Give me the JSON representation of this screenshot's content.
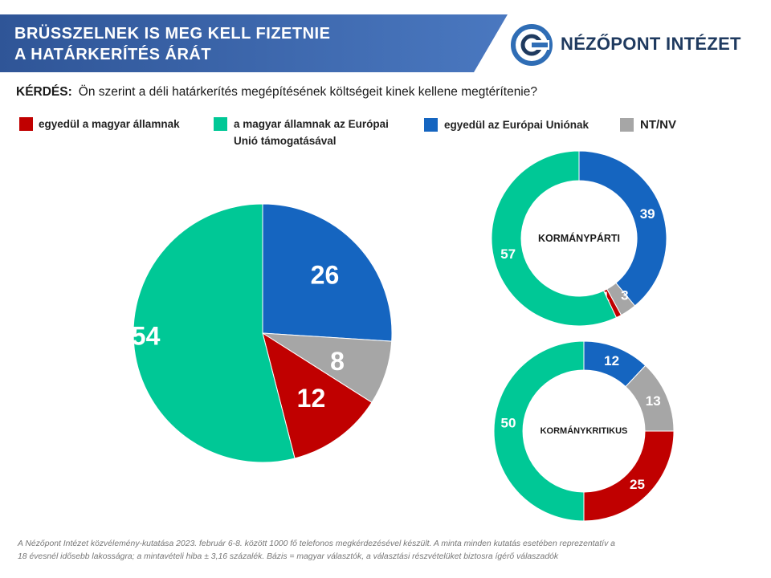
{
  "header": {
    "title_line1": "BRÜSSZELNEK IS MEG KELL FIZETNIE",
    "title_line2": "A HATÁRKERÍTÉS ÁRÁT",
    "logo_text": "NÉZŐPONT INTÉZET",
    "logo_icon": "nezopont-logo-icon",
    "banner_color": "#2f5597"
  },
  "question": {
    "label": "KÉRDÉS:",
    "text": "Ön szerint a déli határkerítés megépítésének költségeit kinek kellene megtérítenie?"
  },
  "legend": [
    {
      "label": "egyedül a magyar államnak",
      "color": "#c00000"
    },
    {
      "label": "a magyar államnak az Európai",
      "label2": "Unió támogatásával",
      "color": "#00c896"
    },
    {
      "label": "egyedül az Európai Uniónak",
      "color": "#1565c0"
    },
    {
      "label": "NT/NV",
      "color": "#a6a6a6"
    }
  ],
  "chart_data": [
    {
      "type": "pie",
      "title": "",
      "categories": [
        "egyedül az Európai Uniónak",
        "NT/NV",
        "egyedül a magyar államnak",
        "a magyar államnak az Európai Unió támogatásával"
      ],
      "values": [
        26,
        8,
        12,
        54
      ],
      "labels": [
        "26",
        "8",
        "12",
        "54"
      ],
      "colors": [
        "#1565c0",
        "#a6a6a6",
        "#c00000",
        "#00c896"
      ]
    },
    {
      "type": "pie",
      "subtype": "donut",
      "title": "KORMÁNYPÁRTI",
      "categories": [
        "egyedül az Európai Uniónak",
        "NT/NV",
        "egyedül a magyar államnak",
        "a magyar államnak az Európai Unió támogatásával"
      ],
      "values": [
        39,
        3,
        1,
        57
      ],
      "labels": [
        "39",
        "3",
        "1",
        "57"
      ],
      "colors": [
        "#1565c0",
        "#a6a6a6",
        "#c00000",
        "#00c896"
      ]
    },
    {
      "type": "pie",
      "subtype": "donut",
      "title": "KORMÁNYKRITIKUS",
      "categories": [
        "egyedül az Európai Uniónak",
        "NT/NV",
        "egyedül a magyar államnak",
        "a magyar államnak az Európai Unió támogatásával"
      ],
      "values": [
        12,
        13,
        25,
        50
      ],
      "labels": [
        "12",
        "13",
        "25",
        "50"
      ],
      "colors": [
        "#1565c0",
        "#a6a6a6",
        "#c00000",
        "#00c896"
      ]
    }
  ],
  "footnote": {
    "line1": "A Nézőpont Intézet közvélemény-kutatása 2023. február 6-8. között 1000 fő telefonos megkérdezésével készült. A minta minden kutatás esetében reprezentatív a",
    "line2": "18 évesnél idősebb lakosságra; a mintavételi hiba ± 3,16 százalék. Bázis = magyar választók, a választási részvételüket biztosra ígérő válaszadók"
  }
}
